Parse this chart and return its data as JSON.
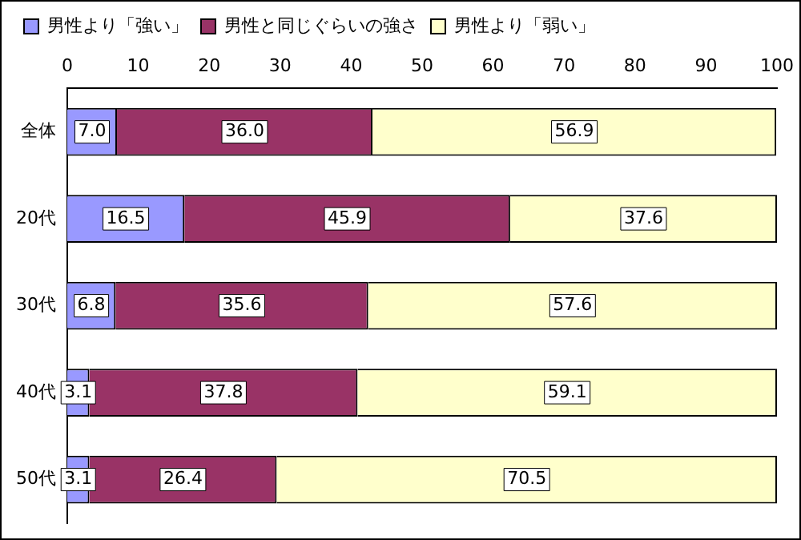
{
  "chart_data": {
    "type": "bar",
    "orientation": "horizontal",
    "stacked": true,
    "categories": [
      "全体",
      "20代",
      "30代",
      "40代",
      "50代"
    ],
    "series": [
      {
        "name": "男性より「強い」",
        "color": "#9999ff",
        "values": [
          7.0,
          16.5,
          6.8,
          3.1,
          3.1
        ],
        "value_labels": [
          "7.0",
          "16.5",
          "6.8",
          "3.1",
          "3.1"
        ]
      },
      {
        "name": "男性と同じぐらいの強さ",
        "color": "#993366",
        "values": [
          36.0,
          45.9,
          35.6,
          37.8,
          26.4
        ],
        "value_labels": [
          "36.0",
          "45.9",
          "35.6",
          "37.8",
          "26.4"
        ]
      },
      {
        "name": "男性より「弱い」",
        "color": "#ffffcc",
        "values": [
          56.9,
          37.6,
          57.6,
          59.1,
          70.5
        ],
        "value_labels": [
          "56.9",
          "37.6",
          "57.6",
          "59.1",
          "70.5"
        ]
      }
    ],
    "xlim": [
      0,
      100
    ],
    "xticks": [
      0,
      10,
      20,
      30,
      40,
      50,
      60,
      70,
      80,
      90,
      100
    ],
    "grid": false,
    "legend": "top"
  }
}
